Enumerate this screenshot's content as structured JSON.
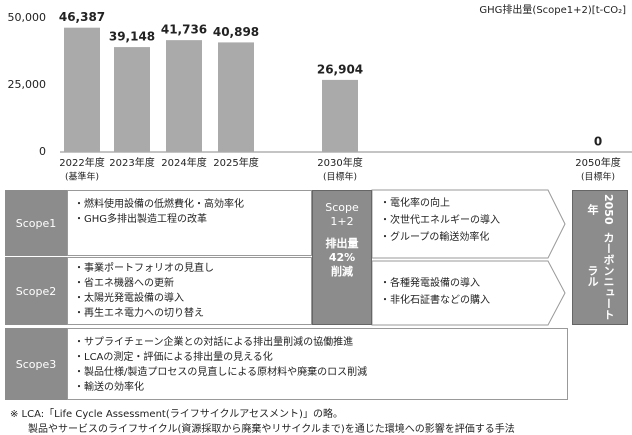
{
  "chart_data": {
    "type": "bar",
    "unit_label": "GHG排出量(Scope1+2)[t-CO₂]",
    "categories": [
      "2022年度",
      "2023年度",
      "2024年度",
      "2025年度",
      "2030年度",
      "2050年度"
    ],
    "category_notes": [
      "(基準年)",
      null,
      null,
      null,
      "(目標年)",
      "(目標年)"
    ],
    "values": [
      46387,
      39148,
      41736,
      40898,
      26904,
      0
    ],
    "value_labels": [
      "46,387",
      "39,148",
      "41,736",
      "40,898",
      "26,904",
      "0"
    ],
    "color": "#aaaaaa",
    "ylim": [
      0,
      50000
    ],
    "yticks": [
      0,
      {
        "value": 25000,
        "label": "25,000"
      },
      {
        "value": 50000,
        "label": "50,000"
      }
    ],
    "grid": false
  },
  "scopes": [
    {
      "label": "Scope1",
      "items": [
        "・燃料使用設備の低燃費化・高効率化",
        "・GHG多排出製造工程の改革"
      ]
    },
    {
      "label": "Scope2",
      "items": [
        "・事業ポートフォリオの見直し",
        "・省エネ機器への更新",
        "・太陽光発電設備の導入",
        "・再生エネ電力への切り替え"
      ]
    },
    {
      "label": "Scope3",
      "items": [
        "・サプライチェーン企業との対話による排出量削減の協働推進",
        "・LCAの測定・評価による排出量の見える化",
        "・製品仕様/製造プロセスの見直しによる原材料や廃棄のロス削減",
        "・輸送の効率化"
      ]
    }
  ],
  "target2030": {
    "title_lines": [
      "Scope",
      "1+2"
    ],
    "body_lines": [
      "排出量",
      "42%",
      "削減"
    ]
  },
  "measures2030": [
    [
      "・電化率の向上",
      "・次世代エネルギーの導入",
      "・グループの輸送効率化"
    ],
    [
      "・各種発電設備の導入",
      "・非化石証書などの購入"
    ]
  ],
  "target2050": [
    "2050年",
    "カーボンニュートラル"
  ],
  "note": [
    "※ LCA:「Life Cycle Assessment(ライフサイクルアセスメント)」の略。",
    "製品やサービスのライフサイクル(資源採取から廃棄やリサイクルまで)を通じた環境への影響を評価する手法"
  ]
}
